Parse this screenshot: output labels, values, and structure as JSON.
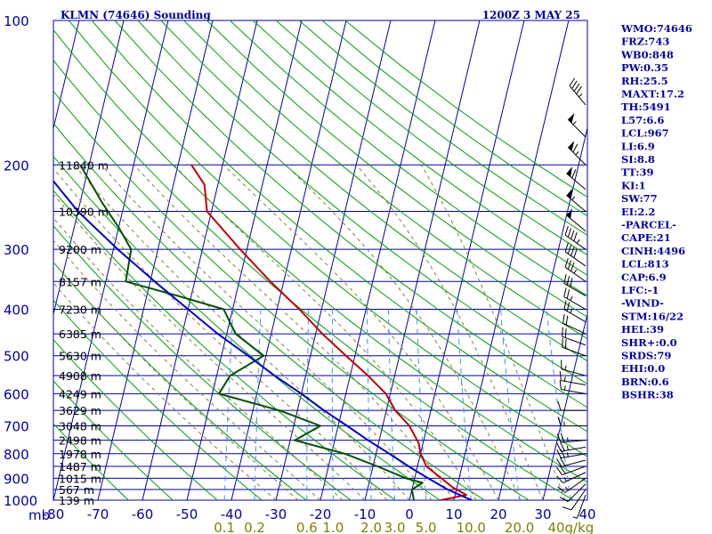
{
  "header": {
    "station": "KLMN (74646) Sounding",
    "time": "1200Z  3 MAY 25"
  },
  "indices": [
    "WMO:74646",
    "FRZ:743",
    "WB0:848",
    "PW:0.35",
    "RH:25.5",
    "MAXT:17.2",
    "TH:5491",
    "L57:6.6",
    "LCL:967",
    "LI:6.9",
    "SI:8.8",
    "TT:39",
    "KI:1",
    "SW:77",
    "EI:2.2",
    "-PARCEL-",
    "CAPE:21",
    "CINH:4496",
    "LCL:813",
    "CAP:6.9",
    "LFC:-1",
    "-WIND-",
    "STM:16/22",
    "HEL:39",
    "SHR+:0.0",
    "SRDS:79",
    "EHI:0.0",
    "BRN:0.6",
    "BSHR:38"
  ],
  "colors": {
    "grid": "#0000a0",
    "dry_adiabat": "#00a000",
    "moist_adiabat": "#808040",
    "mixing_ratio": "#4090ff",
    "temperature": "#c00000",
    "dewpoint": "#005000",
    "parcel": "#0000c0",
    "wind": "#000000",
    "moisture_labels": "#808000"
  },
  "chart_data": {
    "type": "line",
    "title": "KLMN (74646) Sounding",
    "subtitle": "1200Z  3 MAY 25",
    "x_unit_label": "mb",
    "xlim": [
      -80,
      40
    ],
    "ylim": [
      1000,
      100
    ],
    "log_y": true,
    "grid": true,
    "pressure_ticks": [
      100,
      200,
      300,
      400,
      500,
      600,
      700,
      800,
      900,
      1000
    ],
    "temperature_ticks": [
      -80,
      -70,
      -60,
      -50,
      -40,
      -30,
      -20,
      -10,
      0,
      10,
      20,
      30,
      40
    ],
    "height_labels": [
      {
        "p": 200,
        "label": "11840 m"
      },
      {
        "p": 250,
        "label": "10390 m"
      },
      {
        "p": 300,
        "label": "9200 m"
      },
      {
        "p": 350,
        "label": "8157 m"
      },
      {
        "p": 400,
        "label": "7230 m"
      },
      {
        "p": 450,
        "label": "6385 m"
      },
      {
        "p": 500,
        "label": "5630 m"
      },
      {
        "p": 550,
        "label": "4908 m"
      },
      {
        "p": 600,
        "label": "4249 m"
      },
      {
        "p": 650,
        "label": "3629 m"
      },
      {
        "p": 700,
        "label": "3048 m"
      },
      {
        "p": 750,
        "label": "2498 m"
      },
      {
        "p": 800,
        "label": "1978 m"
      },
      {
        "p": 850,
        "label": "1487 m"
      },
      {
        "p": 900,
        "label": "1015 m"
      },
      {
        "p": 950,
        "label": "567 m"
      },
      {
        "p": 1000,
        "label": "139 m"
      }
    ],
    "mixing_ratio_labels": [
      "0.1",
      "0.2",
      "0.6",
      "1.0",
      "2.0",
      "3.0",
      "5.0",
      "10.0",
      "20.0",
      "40g/kg"
    ],
    "mixing_ratio_values": [
      0.1,
      0.2,
      0.6,
      1.0,
      2.0,
      3.0,
      5.0,
      10.0,
      20.0,
      40.0
    ],
    "dry_adiabats_K": [
      210,
      220,
      230,
      240,
      250,
      260,
      270,
      280,
      290,
      300,
      310,
      320,
      330,
      340,
      350,
      360,
      370,
      380,
      390,
      400,
      410,
      420,
      430,
      440,
      450
    ],
    "moist_adiabats_C": [
      -30,
      -25,
      -20,
      -15,
      -10,
      -5,
      0,
      5,
      10,
      15,
      20,
      25,
      30,
      35
    ],
    "series": [
      {
        "kind": "temperature",
        "points": [
          {
            "p": 1000,
            "t": 7
          },
          {
            "p": 975,
            "t": 12.5
          },
          {
            "p": 940,
            "t": 9
          },
          {
            "p": 900,
            "t": 6
          },
          {
            "p": 850,
            "t": 2
          },
          {
            "p": 800,
            "t": 0
          },
          {
            "p": 760,
            "t": -1
          },
          {
            "p": 700,
            "t": -4
          },
          {
            "p": 650,
            "t": -8
          },
          {
            "p": 600,
            "t": -11
          },
          {
            "p": 550,
            "t": -16
          },
          {
            "p": 500,
            "t": -22
          },
          {
            "p": 450,
            "t": -28.5
          },
          {
            "p": 400,
            "t": -35
          },
          {
            "p": 350,
            "t": -43
          },
          {
            "p": 300,
            "t": -51.5
          },
          {
            "p": 270,
            "t": -57
          },
          {
            "p": 250,
            "t": -61
          },
          {
            "p": 220,
            "t": -63
          },
          {
            "p": 200,
            "t": -67
          }
        ]
      },
      {
        "kind": "dewpoint",
        "points": [
          {
            "p": 1000,
            "t": 1
          },
          {
            "p": 950,
            "t": 0
          },
          {
            "p": 920,
            "t": 2
          },
          {
            "p": 900,
            "t": -2
          },
          {
            "p": 850,
            "t": -9
          },
          {
            "p": 800,
            "t": -17
          },
          {
            "p": 750,
            "t": -29
          },
          {
            "p": 700,
            "t": -24
          },
          {
            "p": 650,
            "t": -34
          },
          {
            "p": 600,
            "t": -48.5
          },
          {
            "p": 550,
            "t": -47
          },
          {
            "p": 500,
            "t": -40.5
          },
          {
            "p": 450,
            "t": -48
          },
          {
            "p": 400,
            "t": -52
          },
          {
            "p": 375,
            "t": -63
          },
          {
            "p": 350,
            "t": -75.5
          },
          {
            "p": 300,
            "t": -76
          },
          {
            "p": 270,
            "t": -80
          },
          {
            "p": 240,
            "t": -85
          },
          {
            "p": 200,
            "t": -92
          }
        ]
      },
      {
        "kind": "parcel",
        "points": [
          {
            "p": 1000,
            "t": 14
          },
          {
            "p": 950,
            "t": 8
          },
          {
            "p": 900,
            "t": 3
          },
          {
            "p": 850,
            "t": -2
          },
          {
            "p": 800,
            "t": -7
          },
          {
            "p": 750,
            "t": -12.5
          },
          {
            "p": 700,
            "t": -18
          },
          {
            "p": 650,
            "t": -24
          },
          {
            "p": 600,
            "t": -30
          },
          {
            "p": 550,
            "t": -37
          },
          {
            "p": 500,
            "t": -44
          },
          {
            "p": 450,
            "t": -52
          },
          {
            "p": 400,
            "t": -60
          },
          {
            "p": 350,
            "t": -69
          },
          {
            "p": 300,
            "t": -79
          },
          {
            "p": 250,
            "t": -90
          },
          {
            "p": 200,
            "t": -101
          }
        ]
      }
    ],
    "wind_barbs": [
      {
        "p": 975,
        "dir": 200,
        "spd": 5
      },
      {
        "p": 950,
        "dir": 215,
        "spd": 10
      },
      {
        "p": 925,
        "dir": 225,
        "spd": 10
      },
      {
        "p": 900,
        "dir": 235,
        "spd": 15
      },
      {
        "p": 875,
        "dir": 245,
        "spd": 15
      },
      {
        "p": 850,
        "dir": 250,
        "spd": 20
      },
      {
        "p": 825,
        "dir": 255,
        "spd": 20
      },
      {
        "p": 800,
        "dir": 260,
        "spd": 25
      },
      {
        "p": 775,
        "dir": 260,
        "spd": 25
      },
      {
        "p": 750,
        "dir": 265,
        "spd": 25
      },
      {
        "p": 700,
        "dir": 270,
        "spd": 15
      },
      {
        "p": 650,
        "dir": 270,
        "spd": 10
      },
      {
        "p": 600,
        "dir": 280,
        "spd": 15
      },
      {
        "p": 575,
        "dir": 280,
        "spd": 15
      },
      {
        "p": 550,
        "dir": 285,
        "spd": 15
      },
      {
        "p": 500,
        "dir": 290,
        "spd": 20
      },
      {
        "p": 475,
        "dir": 290,
        "spd": 20
      },
      {
        "p": 450,
        "dir": 295,
        "spd": 20
      },
      {
        "p": 425,
        "dir": 300,
        "spd": 25
      },
      {
        "p": 400,
        "dir": 300,
        "spd": 25
      },
      {
        "p": 375,
        "dir": 300,
        "spd": 30
      },
      {
        "p": 350,
        "dir": 305,
        "spd": 35
      },
      {
        "p": 325,
        "dir": 305,
        "spd": 40
      },
      {
        "p": 300,
        "dir": 305,
        "spd": 45
      },
      {
        "p": 275,
        "dir": 310,
        "spd": 50
      },
      {
        "p": 250,
        "dir": 310,
        "spd": 55
      },
      {
        "p": 225,
        "dir": 310,
        "spd": 60
      },
      {
        "p": 200,
        "dir": 315,
        "spd": 65
      },
      {
        "p": 175,
        "dir": 315,
        "spd": 55
      },
      {
        "p": 150,
        "dir": 320,
        "spd": 45
      }
    ]
  }
}
